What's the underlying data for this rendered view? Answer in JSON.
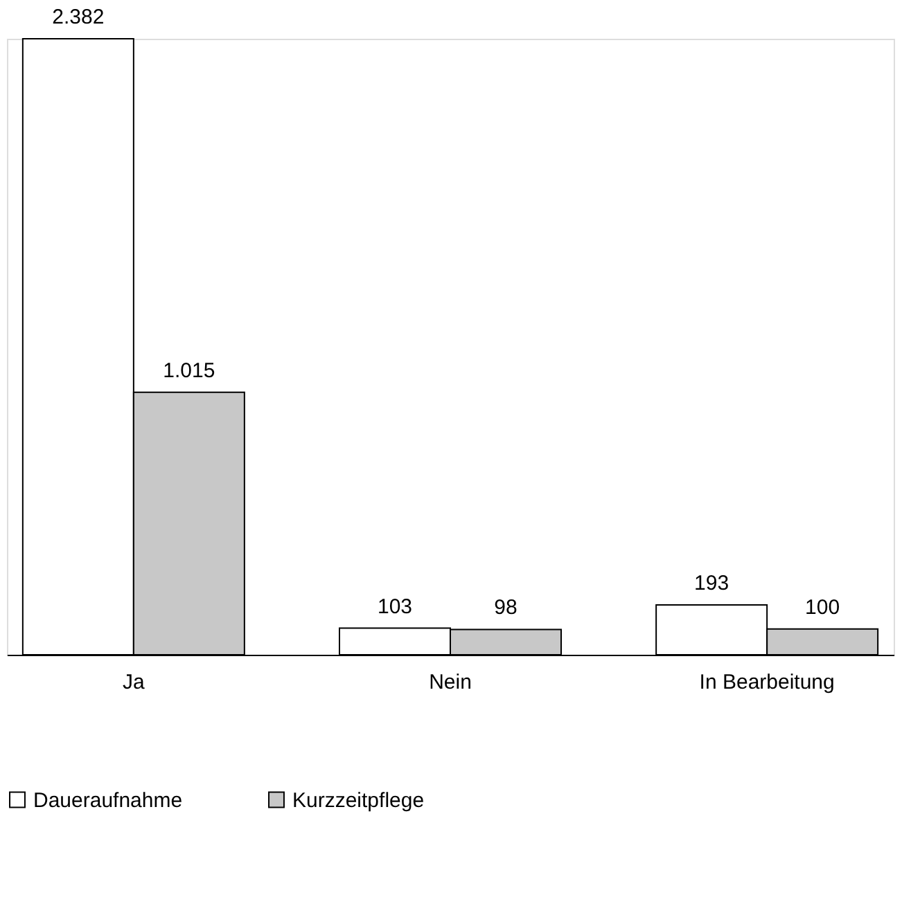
{
  "chart_data": {
    "type": "bar",
    "categories": [
      "Ja",
      "Nein",
      "In Bearbeitung"
    ],
    "series": [
      {
        "name": "Daueraufnahme",
        "color": "#ffffff",
        "values": [
          2382,
          103,
          193
        ],
        "value_labels": [
          "2.382",
          "103",
          "193"
        ]
      },
      {
        "name": "Kurzzeitpflege",
        "color": "#c8c8c8",
        "values": [
          1015,
          98,
          100
        ],
        "value_labels": [
          "1.015",
          "98",
          "100"
        ]
      }
    ],
    "legend": "bottom left",
    "grid": false
  }
}
